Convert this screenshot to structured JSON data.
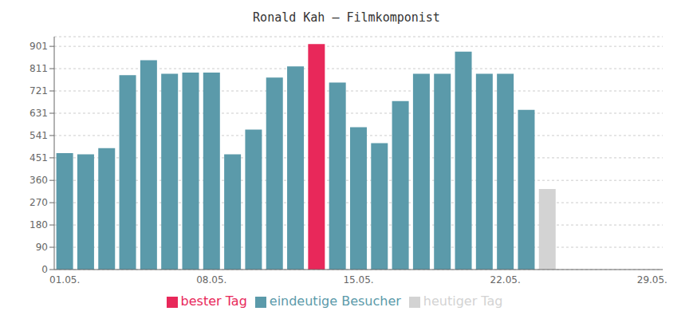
{
  "chart_data": {
    "type": "bar",
    "title": "Ronald Kah – Filmkomponist",
    "categories": [
      "01.05.",
      null,
      null,
      null,
      null,
      null,
      null,
      "08.05.",
      null,
      null,
      null,
      null,
      null,
      null,
      "15.05.",
      null,
      null,
      null,
      null,
      null,
      null,
      "22.05.",
      null,
      null,
      null,
      null,
      null,
      null,
      "29.05."
    ],
    "series": [
      {
        "name": "eindeutige Besucher",
        "color": "#5b9aaa",
        "values": [
          470,
          465,
          490,
          785,
          845,
          790,
          795,
          795,
          465,
          565,
          775,
          820,
          null,
          755,
          575,
          510,
          680,
          790,
          790,
          880,
          790,
          790,
          645,
          null,
          null,
          null,
          null,
          null,
          null
        ]
      },
      {
        "name": "bester Tag",
        "color": "#e8285a",
        "values": [
          null,
          null,
          null,
          null,
          null,
          null,
          null,
          null,
          null,
          null,
          null,
          null,
          910,
          null,
          null,
          null,
          null,
          null,
          null,
          null,
          null,
          null,
          null,
          null,
          null,
          null,
          null,
          null,
          null
        ]
      },
      {
        "name": "heutiger Tag",
        "color": "#d3d3d3",
        "values": [
          null,
          null,
          null,
          null,
          null,
          null,
          null,
          null,
          null,
          null,
          null,
          null,
          null,
          null,
          null,
          null,
          null,
          null,
          null,
          null,
          null,
          null,
          null,
          325,
          null,
          null,
          null,
          null,
          null
        ]
      }
    ],
    "ylim": [
      0,
      940
    ],
    "yticks": [
      0,
      90,
      180,
      270,
      360,
      451,
      541,
      631,
      721,
      811,
      901
    ],
    "grid": true,
    "stacked": true,
    "legend": "bottom"
  }
}
